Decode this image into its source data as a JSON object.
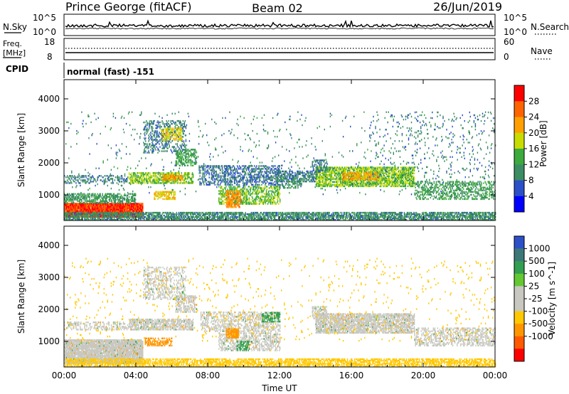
{
  "header": {
    "station": "Prince George (fitACF)",
    "beam": "Beam 02",
    "date": "26/Jun/2019"
  },
  "summary_panels": {
    "nsky": {
      "label": "N.Sky",
      "right_label": "N.Search",
      "left_ticks": [
        "10^5",
        "10^0"
      ],
      "right_ticks": [
        "10^5",
        "10^0"
      ]
    },
    "freq": {
      "label_lines": [
        "Freq.",
        "[MHz]"
      ],
      "right_label": "Nave",
      "left_ticks": [
        "18",
        "8"
      ],
      "right_ticks": [
        "60",
        "0"
      ]
    },
    "cpid": {
      "label": "CPID",
      "value": "normal (fast) -151"
    }
  },
  "colors": {
    "power": [
      "#0000ff",
      "#2c50c8",
      "#3c8c64",
      "#3caa3c",
      "#c8dc00",
      "#ffa000",
      "#ff6400",
      "#ff0000"
    ],
    "velocity": [
      "#ff0000",
      "#ff5a00",
      "#ff9600",
      "#ffc800",
      "#c8c8c0",
      "#c8c8c0",
      "#64c832",
      "#32a050",
      "#3c7878",
      "#2c50c8"
    ]
  },
  "chart_data": [
    {
      "type": "heatmap",
      "title": "",
      "xlabel": "",
      "ylabel": "Slant Range [km]",
      "x_ticks": [
        "00:00",
        "04:00",
        "08:00",
        "12:00",
        "16:00",
        "20:00",
        "00:00"
      ],
      "x_range_hours": [
        0,
        24
      ],
      "y_ticks": [
        "1000",
        "2000",
        "3000",
        "4000"
      ],
      "y_range_km": [
        200,
        4600
      ],
      "grid": false,
      "colorbar": {
        "label": "Power [dB]",
        "ticks": [
          "4",
          "8",
          "12",
          "16",
          "20",
          "24",
          "28"
        ]
      },
      "regions": [
        {
          "t0": 0.0,
          "t1": 4.4,
          "r0": 300,
          "r1": 740,
          "value": 28,
          "density": 0.95
        },
        {
          "t0": 0.0,
          "t1": 4.0,
          "r0": 740,
          "r1": 1050,
          "value": 11,
          "density": 0.55
        },
        {
          "t0": 0.0,
          "t1": 3.6,
          "r0": 1350,
          "r1": 1600,
          "value": 9,
          "density": 0.3
        },
        {
          "t0": 3.6,
          "t1": 7.2,
          "r0": 1350,
          "r1": 1700,
          "value": 16,
          "density": 0.6
        },
        {
          "t0": 5.5,
          "t1": 6.6,
          "r0": 1450,
          "r1": 1600,
          "value": 22,
          "density": 0.7
        },
        {
          "t0": 4.4,
          "t1": 6.8,
          "r0": 2300,
          "r1": 3300,
          "value": 9,
          "density": 0.28
        },
        {
          "t0": 5.4,
          "t1": 6.6,
          "r0": 2700,
          "r1": 3100,
          "value": 19,
          "density": 0.5
        },
        {
          "t0": 6.2,
          "t1": 7.4,
          "r0": 1900,
          "r1": 2400,
          "value": 13,
          "density": 0.45
        },
        {
          "t0": 5.0,
          "t1": 6.2,
          "r0": 850,
          "r1": 1100,
          "value": 20,
          "density": 0.6
        },
        {
          "t0": 7.5,
          "t1": 12.0,
          "r0": 1300,
          "r1": 1900,
          "value": 8,
          "density": 0.4
        },
        {
          "t0": 8.6,
          "t1": 12.0,
          "r0": 700,
          "r1": 1250,
          "value": 15,
          "density": 0.5
        },
        {
          "t0": 9.0,
          "t1": 9.8,
          "r0": 600,
          "r1": 1100,
          "value": 23,
          "density": 0.6
        },
        {
          "t0": 11.8,
          "t1": 14.0,
          "r0": 1400,
          "r1": 1750,
          "value": 9,
          "density": 0.5
        },
        {
          "t0": 14.0,
          "t1": 19.5,
          "r0": 1250,
          "r1": 1850,
          "value": 16,
          "density": 0.65
        },
        {
          "t0": 15.5,
          "t1": 17.5,
          "r0": 1450,
          "r1": 1700,
          "value": 22,
          "density": 0.5
        },
        {
          "t0": 19.5,
          "t1": 24.0,
          "r0": 850,
          "r1": 1400,
          "value": 12,
          "density": 0.4
        },
        {
          "t0": 13.8,
          "t1": 14.6,
          "r0": 1700,
          "r1": 2100,
          "value": 9,
          "density": 0.45
        },
        {
          "t0": 12.0,
          "t1": 13.2,
          "r0": 1200,
          "r1": 1500,
          "value": 10,
          "density": 0.35
        },
        {
          "t0": 0.0,
          "t1": 24.0,
          "r0": 200,
          "r1": 450,
          "value": 10,
          "density": 0.65
        },
        {
          "t0": 17.0,
          "t1": 24.0,
          "r0": 1400,
          "r1": 3600,
          "value": 9,
          "density": 0.03
        },
        {
          "t0": 0.0,
          "t1": 24.0,
          "r0": 1000,
          "r1": 3600,
          "value": 10,
          "density": 0.02
        }
      ]
    },
    {
      "type": "heatmap",
      "title": "",
      "xlabel": "Time UT",
      "ylabel": "Slant Range [km]",
      "x_ticks": [
        "00:00",
        "04:00",
        "08:00",
        "12:00",
        "16:00",
        "20:00",
        "00:00"
      ],
      "x_range_hours": [
        0,
        24
      ],
      "y_ticks": [
        "1000",
        "2000",
        "3000",
        "4000"
      ],
      "y_range_km": [
        200,
        4600
      ],
      "grid": false,
      "colorbar": {
        "label": "Velocity [m s^-1]",
        "ticks": [
          "1000",
          "500",
          "100",
          "25",
          "-25",
          "-100",
          "-500",
          "-1000"
        ]
      },
      "regions": [
        {
          "t0": 0.0,
          "t1": 4.4,
          "r0": 300,
          "r1": 1050,
          "value": 0,
          "density": 0.9
        },
        {
          "t0": 0.0,
          "t1": 3.6,
          "r0": 1350,
          "r1": 1600,
          "value": 0,
          "density": 0.3
        },
        {
          "t0": 3.6,
          "t1": 7.2,
          "r0": 1350,
          "r1": 1700,
          "value": 0,
          "density": 0.6
        },
        {
          "t0": 4.4,
          "t1": 6.8,
          "r0": 2300,
          "r1": 3300,
          "value": 0,
          "density": 0.3
        },
        {
          "t0": 6.2,
          "t1": 7.4,
          "r0": 1900,
          "r1": 2400,
          "value": 0,
          "density": 0.45
        },
        {
          "t0": 4.5,
          "t1": 6.0,
          "r0": 850,
          "r1": 1100,
          "value": -200,
          "density": 0.55
        },
        {
          "t0": 7.6,
          "t1": 12.0,
          "r0": 1300,
          "r1": 1900,
          "value": 0,
          "density": 0.4
        },
        {
          "t0": 8.6,
          "t1": 12.0,
          "r0": 700,
          "r1": 1250,
          "value": 0,
          "density": 0.45
        },
        {
          "t0": 9.0,
          "t1": 9.7,
          "r0": 1100,
          "r1": 1400,
          "value": -400,
          "density": 0.7
        },
        {
          "t0": 9.6,
          "t1": 10.3,
          "r0": 700,
          "r1": 1000,
          "value": 200,
          "density": 0.5
        },
        {
          "t0": 13.8,
          "t1": 14.6,
          "r0": 1700,
          "r1": 2100,
          "value": 0,
          "density": 0.45
        },
        {
          "t0": 14.0,
          "t1": 19.5,
          "r0": 1250,
          "r1": 1850,
          "value": 0,
          "density": 0.7
        },
        {
          "t0": 19.5,
          "t1": 24.0,
          "r0": 850,
          "r1": 1400,
          "value": 0,
          "density": 0.4
        },
        {
          "t0": 11.0,
          "t1": 12.0,
          "r0": 1600,
          "r1": 1900,
          "value": 200,
          "density": 0.45
        },
        {
          "t0": 0.0,
          "t1": 24.0,
          "r0": 200,
          "r1": 450,
          "value": -60,
          "density": 0.55
        },
        {
          "t0": 0.0,
          "t1": 24.0,
          "r0": 1000,
          "r1": 3600,
          "value": -60,
          "density": 0.02
        }
      ]
    }
  ]
}
